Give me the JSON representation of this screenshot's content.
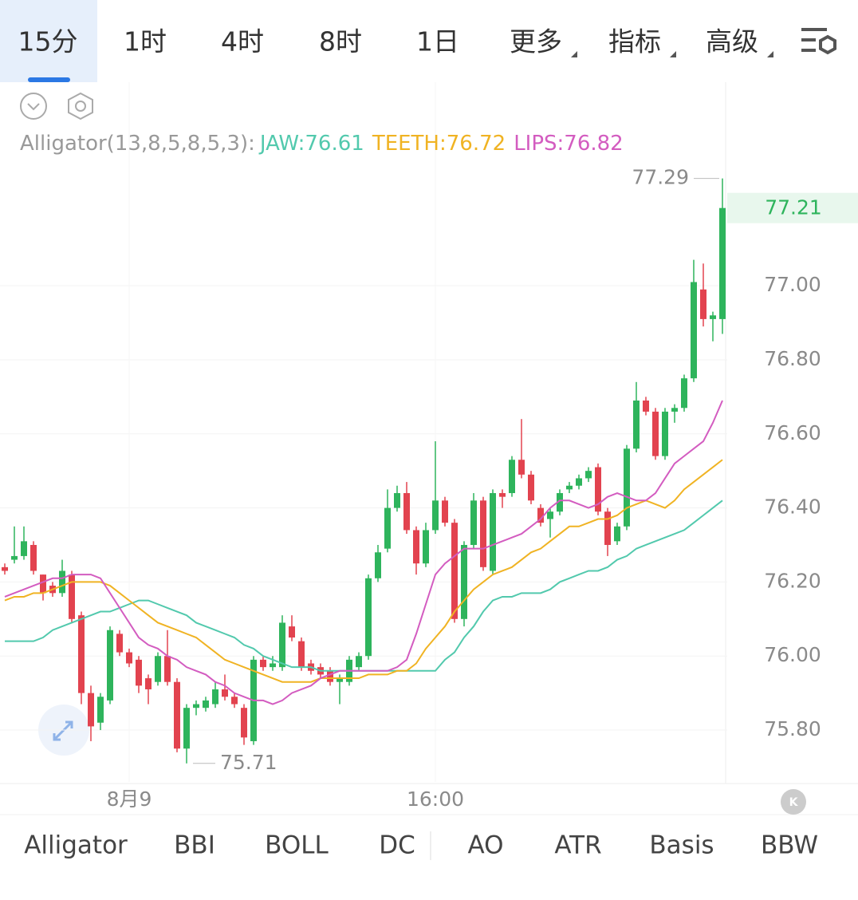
{
  "ui": {
    "top_tabs": [
      "15分",
      "1时",
      "4时",
      "8时",
      "1日",
      "更多",
      "指标",
      "高级"
    ],
    "bottom_tabs": [
      "Alligator",
      "BBI",
      "BOLL",
      "DC",
      "AO",
      "ATR",
      "Basis",
      "BBW"
    ]
  },
  "chart_data": {
    "type": "candlestick",
    "indicator_label": "Alligator(13,8,5,8,5,3):",
    "grid": true,
    "categories": [
      null,
      null,
      null,
      null,
      null,
      null,
      null,
      null,
      null,
      null,
      null,
      null,
      null,
      "8月9",
      null,
      null,
      null,
      null,
      null,
      null,
      null,
      null,
      null,
      null,
      null,
      null,
      null,
      null,
      null,
      null,
      null,
      null,
      null,
      null,
      null,
      null,
      null,
      null,
      null,
      null,
      null,
      null,
      null,
      null,
      null,
      "16:00",
      null,
      null,
      null,
      null,
      null,
      null,
      null,
      null,
      null,
      null,
      null,
      null,
      null,
      null,
      null,
      null,
      null,
      null,
      null,
      null,
      null,
      null,
      null,
      null,
      null,
      null,
      null,
      null,
      null,
      null
    ],
    "open": [
      76.24,
      76.26,
      76.27,
      76.3,
      76.22,
      76.19,
      76.17,
      76.22,
      76.11,
      75.9,
      75.82,
      75.88,
      76.06,
      76.01,
      75.99,
      75.94,
      75.93,
      76.0,
      75.93,
      75.75,
      75.86,
      75.86,
      75.87,
      75.91,
      75.89,
      75.86,
      75.77,
      75.99,
      75.97,
      75.97,
      76.08,
      76.04,
      75.98,
      75.97,
      75.96,
      75.93,
      75.93,
      75.97,
      76.0,
      76.21,
      76.29,
      76.4,
      76.44,
      76.34,
      76.25,
      76.34,
      76.42,
      76.36,
      76.1,
      76.3,
      76.42,
      76.23,
      76.44,
      76.44,
      76.53,
      76.49,
      76.4,
      76.37,
      76.39,
      76.45,
      76.46,
      76.48,
      76.51,
      76.39,
      76.31,
      76.35,
      76.56,
      76.69,
      76.66,
      76.54,
      76.66,
      76.67,
      76.75,
      76.99,
      76.91,
      76.91
    ],
    "high": [
      76.25,
      76.35,
      76.35,
      76.31,
      76.22,
      76.2,
      76.26,
      76.23,
      76.12,
      75.92,
      75.9,
      76.08,
      76.07,
      76.02,
      76.0,
      75.95,
      76.01,
      76.07,
      75.94,
      75.87,
      75.88,
      75.89,
      75.93,
      75.95,
      75.9,
      75.87,
      76.0,
      76.0,
      76.0,
      76.11,
      76.11,
      76.05,
      75.99,
      75.98,
      75.97,
      75.95,
      76.0,
      76.01,
      76.22,
      76.3,
      76.45,
      76.46,
      76.47,
      76.35,
      76.36,
      76.58,
      76.43,
      76.37,
      76.31,
      76.44,
      76.43,
      76.45,
      76.45,
      76.54,
      76.64,
      76.5,
      76.41,
      76.4,
      76.45,
      76.47,
      76.49,
      76.51,
      76.52,
      76.4,
      76.36,
      76.57,
      76.74,
      76.7,
      76.67,
      76.67,
      76.68,
      76.76,
      77.07,
      77.06,
      76.93,
      77.29
    ],
    "low": [
      76.22,
      76.25,
      76.26,
      76.22,
      76.15,
      76.16,
      76.16,
      76.09,
      75.87,
      75.77,
      75.8,
      75.87,
      76.0,
      75.97,
      75.9,
      75.87,
      75.92,
      75.92,
      75.74,
      75.71,
      75.84,
      75.85,
      75.86,
      75.88,
      75.86,
      75.76,
      75.76,
      75.96,
      75.96,
      75.96,
      76.04,
      75.96,
      75.95,
      75.94,
      75.92,
      75.87,
      75.92,
      75.96,
      75.99,
      76.2,
      76.28,
      76.39,
      76.33,
      76.22,
      76.24,
      76.33,
      76.35,
      76.09,
      76.08,
      76.29,
      76.23,
      76.22,
      76.4,
      76.43,
      76.48,
      76.41,
      76.35,
      76.32,
      76.38,
      76.44,
      76.45,
      76.47,
      76.38,
      76.27,
      76.3,
      76.34,
      76.55,
      76.65,
      76.53,
      76.53,
      76.63,
      76.66,
      76.74,
      76.89,
      76.85,
      76.87
    ],
    "close": [
      76.23,
      76.27,
      76.31,
      76.23,
      76.17,
      76.17,
      76.23,
      76.1,
      75.9,
      75.81,
      75.89,
      76.07,
      76.01,
      75.98,
      75.92,
      75.91,
      76.0,
      75.93,
      75.75,
      75.86,
      75.87,
      75.88,
      75.91,
      75.89,
      75.87,
      75.78,
      75.99,
      75.97,
      75.98,
      76.09,
      76.05,
      75.97,
      75.96,
      75.95,
      75.93,
      75.94,
      75.99,
      76.0,
      76.21,
      76.28,
      76.4,
      76.44,
      76.34,
      76.25,
      76.34,
      76.42,
      76.36,
      76.1,
      76.3,
      76.42,
      76.24,
      76.44,
      76.43,
      76.53,
      76.49,
      76.42,
      76.36,
      76.39,
      76.44,
      76.46,
      76.48,
      76.5,
      76.39,
      76.3,
      76.35,
      76.56,
      76.69,
      76.66,
      76.54,
      76.66,
      76.67,
      76.75,
      77.01,
      76.91,
      76.92,
      77.21
    ],
    "up_color": "#2eb45c",
    "down_color": "#e2434f",
    "series": [
      {
        "name": "JAW:76.61",
        "color": "#52c9ad",
        "values": [
          76.04,
          76.04,
          76.04,
          76.04,
          76.05,
          76.07,
          76.08,
          76.09,
          76.1,
          76.11,
          76.12,
          76.12,
          76.13,
          76.14,
          76.15,
          76.15,
          76.14,
          76.13,
          76.12,
          76.11,
          76.09,
          76.08,
          76.07,
          76.06,
          76.05,
          76.03,
          76.02,
          76.0,
          75.99,
          75.98,
          75.97,
          75.97,
          75.97,
          75.96,
          75.96,
          75.96,
          75.96,
          75.96,
          75.96,
          75.96,
          75.96,
          75.96,
          75.96,
          75.96,
          75.96,
          75.96,
          75.99,
          76.01,
          76.05,
          76.08,
          76.12,
          76.15,
          76.16,
          76.16,
          76.17,
          76.17,
          76.17,
          76.18,
          76.2,
          76.21,
          76.22,
          76.23,
          76.23,
          76.24,
          76.26,
          76.27,
          76.29,
          76.3,
          76.31,
          76.32,
          76.33,
          76.34,
          76.36,
          76.38,
          76.4,
          76.42
        ]
      },
      {
        "name": "TEETH:76.72",
        "color": "#f0b323",
        "values": [
          76.15,
          76.16,
          76.16,
          76.17,
          76.17,
          76.18,
          76.19,
          76.2,
          76.2,
          76.2,
          76.2,
          76.19,
          76.17,
          76.15,
          76.13,
          76.11,
          76.09,
          76.08,
          76.07,
          76.06,
          76.05,
          76.03,
          76.01,
          75.99,
          75.98,
          75.97,
          75.96,
          75.95,
          75.94,
          75.93,
          75.93,
          75.93,
          75.93,
          75.94,
          75.94,
          75.94,
          75.94,
          75.94,
          75.95,
          75.95,
          75.95,
          75.96,
          75.96,
          75.98,
          76.02,
          76.05,
          76.08,
          76.12,
          76.15,
          76.18,
          76.2,
          76.22,
          76.23,
          76.24,
          76.26,
          76.28,
          76.29,
          76.31,
          76.33,
          76.35,
          76.35,
          76.36,
          76.37,
          76.37,
          76.38,
          76.4,
          76.41,
          76.42,
          76.41,
          76.4,
          76.42,
          76.45,
          76.47,
          76.49,
          76.51,
          76.53
        ]
      },
      {
        "name": "LIPS:76.82",
        "color": "#d35cc0",
        "values": [
          76.16,
          76.17,
          76.18,
          76.19,
          76.2,
          76.21,
          76.21,
          76.22,
          76.22,
          76.22,
          76.21,
          76.17,
          76.13,
          76.09,
          76.05,
          76.03,
          76.02,
          76.0,
          75.99,
          75.97,
          75.96,
          75.95,
          75.93,
          75.92,
          75.9,
          75.89,
          75.88,
          75.88,
          75.87,
          75.88,
          75.9,
          75.91,
          75.92,
          75.94,
          75.95,
          75.96,
          75.96,
          75.96,
          75.96,
          75.96,
          75.96,
          75.97,
          75.99,
          76.06,
          76.14,
          76.22,
          76.25,
          76.27,
          76.29,
          76.29,
          76.29,
          76.3,
          76.31,
          76.32,
          76.33,
          76.35,
          76.37,
          76.4,
          76.42,
          76.42,
          76.41,
          76.4,
          76.41,
          76.43,
          76.44,
          76.43,
          76.42,
          76.42,
          76.44,
          76.48,
          76.52,
          76.54,
          76.56,
          76.58,
          76.63,
          76.69
        ]
      }
    ],
    "ylim": [
      75.66,
      77.33
    ],
    "yticks": [
      {
        "value": 75.8,
        "label": "75.80"
      },
      {
        "value": 76,
        "label": "76.00"
      },
      {
        "value": 76.2,
        "label": "76.20"
      },
      {
        "value": 76.4,
        "label": "76.40"
      },
      {
        "value": 76.6,
        "label": "76.60"
      },
      {
        "value": 76.8,
        "label": "76.80"
      },
      {
        "value": 77,
        "label": "77.00"
      }
    ],
    "annotations": {
      "high": 77.29,
      "low": 75.71,
      "last": 77.21
    }
  }
}
